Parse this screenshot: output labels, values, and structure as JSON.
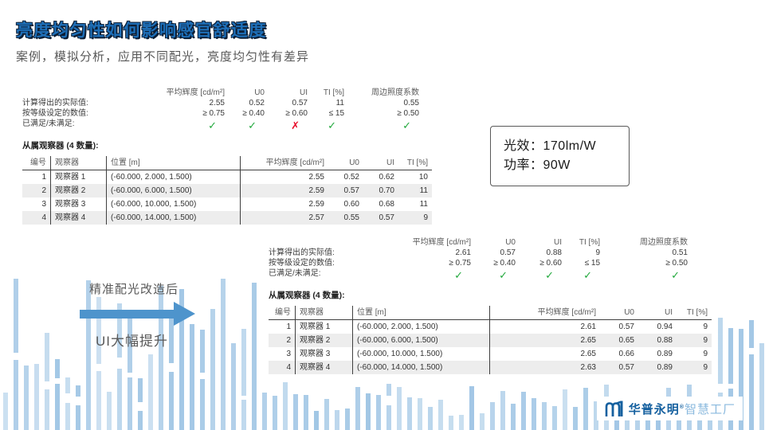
{
  "slide": {
    "title": "亮度均匀性如何影响感官舒适度",
    "subtitle": "案例，模拟分析，应用不同配光，亮度均匀性有差异"
  },
  "colors": {
    "title_fill": "#1e6fb8",
    "title_outline": "#0d1f36",
    "arrow_blue": "#4e94cc",
    "deco_bar_blue": "#c9dff1",
    "check_green": "#21a93c",
    "cross_red": "#e8112d",
    "logo_blue": "#15609f",
    "logo_light_blue": "#8ab9de",
    "row_shade": "#ededed"
  },
  "summary": {
    "headers": [
      "平均辉度  [cd/m²]",
      "U0",
      "UI",
      "TI [%]",
      "周边照度系数"
    ],
    "labels": {
      "actual": "计算得出的实际值:",
      "required": "按等级设定的数值:",
      "status": "已满足/未满足:"
    },
    "table_headers": [
      "编号",
      "观察器",
      "位置  [m]",
      "平均辉度  [cd/m²]",
      "U0",
      "UI",
      "TI [%]"
    ]
  },
  "status_glyphs": {
    "pass": "✓",
    "fail": "✗"
  },
  "block_a": {
    "actual": [
      "2.55",
      "0.52",
      "0.57",
      "11",
      "0.55"
    ],
    "required": [
      "≥ 0.75",
      "≥ 0.40",
      "≥ 0.60",
      "≤ 15",
      "≥ 0.50"
    ],
    "status": [
      "pass",
      "pass",
      "fail",
      "pass",
      "pass"
    ],
    "observers_title": "从属观察器  (4 数量):",
    "rows": [
      [
        "1",
        "观察器  1",
        "(-60.000, 2.000, 1.500)",
        "2.55",
        "0.52",
        "0.62",
        "10"
      ],
      [
        "2",
        "观察器  2",
        "(-60.000, 6.000, 1.500)",
        "2.59",
        "0.57",
        "0.70",
        "11"
      ],
      [
        "3",
        "观察器  3",
        "(-60.000, 10.000, 1.500)",
        "2.59",
        "0.60",
        "0.68",
        "11"
      ],
      [
        "4",
        "观察器  4",
        "(-60.000, 14.000, 1.500)",
        "2.57",
        "0.55",
        "0.57",
        "9"
      ]
    ]
  },
  "block_b": {
    "actual": [
      "2.61",
      "0.57",
      "0.88",
      "9",
      "0.51"
    ],
    "required": [
      "≥ 0.75",
      "≥ 0.40",
      "≥ 0.60",
      "≤ 15",
      "≥ 0.50"
    ],
    "status": [
      "pass",
      "pass",
      "pass",
      "pass",
      "pass"
    ],
    "observers_title": "从属观察器  (4 数量):",
    "rows": [
      [
        "1",
        "观察器  1",
        "(-60.000, 2.000, 1.500)",
        "2.61",
        "0.57",
        "0.94",
        "9"
      ],
      [
        "2",
        "观察器  2",
        "(-60.000, 6.000, 1.500)",
        "2.65",
        "0.65",
        "0.88",
        "9"
      ],
      [
        "3",
        "观察器  3",
        "(-60.000, 10.000, 1.500)",
        "2.65",
        "0.66",
        "0.89",
        "9"
      ],
      [
        "4",
        "观察器  4",
        "(-60.000, 14.000, 1.500)",
        "2.63",
        "0.57",
        "0.89",
        "9"
      ]
    ]
  },
  "info_box": {
    "line1": "光效：170lm/W",
    "line2": "功率：90W"
  },
  "annotation": {
    "line1": "精准配光改造后",
    "line2": "UI大幅提升"
  },
  "logo": {
    "name": "华普永明",
    "reg": "®",
    "suffix": "智慧工厂"
  }
}
